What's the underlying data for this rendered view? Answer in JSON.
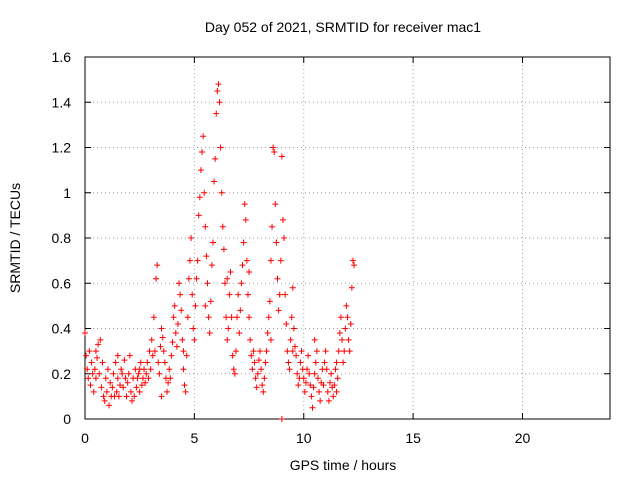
{
  "chart_data": {
    "type": "scatter",
    "title": "Day 052 of 2021, SRMTID for receiver mac1",
    "xlabel": "GPS time / hours",
    "ylabel": "SRMTID / TECUs",
    "xlim": [
      0,
      24
    ],
    "ylim": [
      0,
      1.6
    ],
    "grid": true,
    "x_ticks": [
      0,
      5,
      10,
      15,
      20
    ],
    "x_tick_labels": [
      "0",
      "5",
      "10",
      "15",
      "20"
    ],
    "y_ticks": [
      0,
      0.2,
      0.4,
      0.6,
      0.8,
      1.0,
      1.2,
      1.4,
      1.6
    ],
    "y_tick_labels": [
      "0",
      "0.2",
      "0.4",
      "0.6",
      "0.8",
      "1",
      "1.2",
      "1.4",
      "1.6"
    ],
    "marker": "+",
    "series": [
      {
        "name": "SRMTID",
        "color": "#ff0000",
        "points": [
          [
            0.0,
            0.38
          ],
          [
            0.05,
            0.28
          ],
          [
            0.1,
            0.22
          ],
          [
            0.15,
            0.18
          ],
          [
            0.2,
            0.3
          ],
          [
            0.25,
            0.15
          ],
          [
            0.3,
            0.25
          ],
          [
            0.35,
            0.2
          ],
          [
            0.4,
            0.12
          ],
          [
            0.45,
            0.22
          ],
          [
            0.5,
            0.18
          ],
          [
            0.55,
            0.27
          ],
          [
            0.6,
            0.33
          ],
          [
            0.65,
            0.2
          ],
          [
            0.7,
            0.35
          ],
          [
            0.75,
            0.14
          ],
          [
            0.8,
            0.25
          ],
          [
            0.85,
            0.1
          ],
          [
            0.9,
            0.08
          ],
          [
            0.95,
            0.18
          ],
          [
            1.0,
            0.12
          ],
          [
            1.05,
            0.22
          ],
          [
            1.1,
            0.06
          ],
          [
            1.15,
            0.16
          ],
          [
            1.2,
            0.1
          ],
          [
            1.25,
            0.14
          ],
          [
            1.3,
            0.2
          ],
          [
            1.35,
            0.1
          ],
          [
            1.4,
            0.25
          ],
          [
            1.45,
            0.12
          ],
          [
            1.5,
            0.18
          ],
          [
            1.55,
            0.1
          ],
          [
            1.6,
            0.15
          ],
          [
            1.65,
            0.22
          ],
          [
            1.7,
            0.2
          ],
          [
            1.75,
            0.14
          ],
          [
            1.8,
            0.26
          ],
          [
            1.85,
            0.18
          ],
          [
            1.9,
            0.1
          ],
          [
            1.95,
            0.16
          ],
          [
            2.0,
            0.2
          ],
          [
            2.05,
            0.28
          ],
          [
            2.1,
            0.12
          ],
          [
            2.15,
            0.08
          ],
          [
            2.2,
            0.18
          ],
          [
            2.25,
            0.1
          ],
          [
            2.3,
            0.22
          ],
          [
            2.35,
            0.14
          ],
          [
            2.4,
            0.18
          ],
          [
            2.45,
            0.2
          ],
          [
            2.5,
            0.12
          ],
          [
            2.55,
            0.25
          ],
          [
            2.6,
            0.15
          ],
          [
            2.65,
            0.18
          ],
          [
            2.7,
            0.22
          ],
          [
            2.75,
            0.16
          ],
          [
            2.8,
            0.2
          ],
          [
            2.85,
            0.25
          ],
          [
            2.9,
            0.18
          ],
          [
            2.95,
            0.3
          ],
          [
            3.0,
            0.22
          ],
          [
            3.05,
            0.35
          ],
          [
            3.1,
            0.28
          ],
          [
            3.15,
            0.45
          ],
          [
            3.2,
            0.3
          ],
          [
            3.25,
            0.62
          ],
          [
            3.3,
            0.68
          ],
          [
            3.35,
            0.25
          ],
          [
            3.4,
            0.2
          ],
          [
            3.45,
            0.32
          ],
          [
            3.5,
            0.4
          ],
          [
            3.55,
            0.36
          ],
          [
            3.6,
            0.3
          ],
          [
            3.65,
            0.25
          ],
          [
            3.7,
            0.18
          ],
          [
            3.75,
            0.12
          ],
          [
            3.8,
            0.16
          ],
          [
            3.85,
            0.22
          ],
          [
            3.9,
            0.18
          ],
          [
            3.95,
            0.28
          ],
          [
            4.0,
            0.34
          ],
          [
            4.05,
            0.45
          ],
          [
            4.1,
            0.5
          ],
          [
            4.15,
            0.38
          ],
          [
            4.2,
            0.32
          ],
          [
            4.25,
            0.42
          ],
          [
            4.3,
            0.6
          ],
          [
            4.35,
            0.55
          ],
          [
            4.4,
            0.48
          ],
          [
            4.45,
            0.35
          ],
          [
            4.5,
            0.22
          ],
          [
            4.55,
            0.15
          ],
          [
            4.6,
            0.12
          ],
          [
            4.65,
            0.28
          ],
          [
            4.7,
            0.45
          ],
          [
            4.75,
            0.62
          ],
          [
            4.8,
            0.7
          ],
          [
            4.85,
            0.8
          ],
          [
            4.9,
            0.55
          ],
          [
            4.95,
            0.4
          ],
          [
            5.0,
            0.35
          ],
          [
            5.05,
            0.5
          ],
          [
            5.1,
            0.62
          ],
          [
            5.15,
            0.7
          ],
          [
            5.2,
            0.9
          ],
          [
            5.25,
            0.98
          ],
          [
            5.3,
            1.1
          ],
          [
            5.35,
            1.18
          ],
          [
            5.4,
            1.25
          ],
          [
            5.45,
            1.0
          ],
          [
            5.5,
            0.85
          ],
          [
            5.55,
            0.72
          ],
          [
            5.6,
            0.6
          ],
          [
            5.65,
            0.45
          ],
          [
            5.7,
            0.38
          ],
          [
            5.75,
            0.52
          ],
          [
            5.8,
            0.68
          ],
          [
            5.85,
            0.78
          ],
          [
            5.9,
            1.05
          ],
          [
            5.95,
            1.15
          ],
          [
            6.0,
            1.35
          ],
          [
            6.05,
            1.45
          ],
          [
            6.1,
            1.48
          ],
          [
            6.15,
            1.4
          ],
          [
            6.2,
            1.2
          ],
          [
            6.25,
            1.0
          ],
          [
            6.3,
            0.85
          ],
          [
            6.35,
            0.75
          ],
          [
            6.4,
            0.6
          ],
          [
            6.45,
            0.45
          ],
          [
            6.5,
            0.35
          ],
          [
            6.55,
            0.4
          ],
          [
            6.6,
            0.55
          ],
          [
            6.65,
            0.65
          ],
          [
            6.7,
            0.45
          ],
          [
            6.75,
            0.28
          ],
          [
            6.8,
            0.22
          ],
          [
            6.85,
            0.2
          ],
          [
            6.9,
            0.3
          ],
          [
            6.95,
            0.45
          ],
          [
            7.0,
            0.55
          ],
          [
            7.05,
            0.38
          ],
          [
            7.1,
            0.48
          ],
          [
            7.15,
            0.6
          ],
          [
            7.2,
            0.68
          ],
          [
            7.25,
            0.78
          ],
          [
            7.3,
            0.95
          ],
          [
            7.35,
            0.88
          ],
          [
            7.4,
            0.7
          ],
          [
            7.45,
            0.55
          ],
          [
            7.5,
            0.45
          ],
          [
            7.55,
            0.35
          ],
          [
            7.6,
            0.28
          ],
          [
            7.65,
            0.22
          ],
          [
            7.7,
            0.3
          ],
          [
            7.75,
            0.25
          ],
          [
            7.8,
            0.18
          ],
          [
            7.85,
            0.14
          ],
          [
            7.9,
            0.2
          ],
          [
            7.95,
            0.26
          ],
          [
            8.0,
            0.3
          ],
          [
            8.05,
            0.22
          ],
          [
            8.1,
            0.15
          ],
          [
            8.15,
            0.12
          ],
          [
            8.2,
            0.18
          ],
          [
            8.25,
            0.25
          ],
          [
            8.3,
            0.3
          ],
          [
            8.35,
            0.38
          ],
          [
            8.4,
            0.45
          ],
          [
            8.45,
            0.52
          ],
          [
            8.5,
            0.7
          ],
          [
            8.55,
            0.85
          ],
          [
            8.6,
            1.2
          ],
          [
            8.65,
            1.18
          ],
          [
            8.7,
            0.95
          ],
          [
            8.75,
            0.78
          ],
          [
            8.8,
            0.62
          ],
          [
            8.85,
            0.48
          ],
          [
            8.9,
            0.55
          ],
          [
            8.95,
            0.7
          ],
          [
            9.0,
            1.16
          ],
          [
            9.05,
            0.88
          ],
          [
            9.1,
            0.8
          ],
          [
            9.15,
            0.55
          ],
          [
            9.2,
            0.42
          ],
          [
            9.25,
            0.3
          ],
          [
            9.3,
            0.25
          ],
          [
            9.35,
            0.22
          ],
          [
            9.4,
            0.35
          ],
          [
            9.45,
            0.45
          ],
          [
            9.5,
            0.58
          ],
          [
            9.55,
            0.4
          ],
          [
            9.6,
            0.32
          ],
          [
            9.65,
            0.28
          ],
          [
            9.7,
            0.2
          ],
          [
            9.75,
            0.15
          ],
          [
            9.8,
            0.18
          ],
          [
            9.85,
            0.25
          ],
          [
            9.9,
            0.3
          ],
          [
            9.95,
            0.22
          ],
          [
            10.0,
            0.18
          ],
          [
            10.05,
            0.12
          ],
          [
            10.1,
            0.16
          ],
          [
            10.15,
            0.22
          ],
          [
            10.2,
            0.28
          ],
          [
            10.25,
            0.2
          ],
          [
            10.3,
            0.15
          ],
          [
            10.35,
            0.1
          ],
          [
            10.4,
            0.05
          ],
          [
            10.45,
            0.14
          ],
          [
            10.5,
            0.2
          ],
          [
            10.55,
            0.25
          ],
          [
            10.6,
            0.3
          ],
          [
            10.65,
            0.18
          ],
          [
            10.7,
            0.12
          ],
          [
            10.75,
            0.08
          ],
          [
            10.8,
            0.16
          ],
          [
            10.85,
            0.22
          ],
          [
            10.9,
            0.15
          ],
          [
            10.95,
            0.25
          ],
          [
            11.0,
            0.3
          ],
          [
            11.05,
            0.22
          ],
          [
            11.1,
            0.12
          ],
          [
            11.15,
            0.08
          ],
          [
            11.2,
            0.16
          ],
          [
            11.25,
            0.2
          ],
          [
            11.3,
            0.14
          ],
          [
            11.35,
            0.1
          ],
          [
            11.4,
            0.15
          ],
          [
            11.45,
            0.22
          ],
          [
            11.5,
            0.25
          ],
          [
            11.55,
            0.18
          ],
          [
            11.6,
            0.3
          ],
          [
            11.65,
            0.38
          ],
          [
            11.7,
            0.45
          ],
          [
            11.75,
            0.35
          ],
          [
            11.8,
            0.25
          ],
          [
            11.85,
            0.3
          ],
          [
            11.9,
            0.4
          ],
          [
            11.95,
            0.5
          ],
          [
            12.0,
            0.45
          ],
          [
            12.05,
            0.35
          ],
          [
            12.1,
            0.3
          ],
          [
            12.15,
            0.42
          ],
          [
            12.2,
            0.58
          ],
          [
            12.25,
            0.7
          ],
          [
            12.3,
            0.68
          ],
          [
            9.0,
            0.0
          ],
          [
            0.5,
            0.3
          ],
          [
            1.5,
            0.28
          ],
          [
            2.5,
            0.22
          ],
          [
            3.5,
            0.1
          ],
          [
            4.5,
            0.3
          ],
          [
            5.5,
            0.5
          ],
          [
            6.5,
            0.62
          ],
          [
            7.5,
            0.65
          ],
          [
            8.5,
            0.35
          ],
          [
            9.5,
            0.3
          ],
          [
            10.5,
            0.35
          ],
          [
            11.5,
            0.12
          ]
        ]
      }
    ]
  }
}
